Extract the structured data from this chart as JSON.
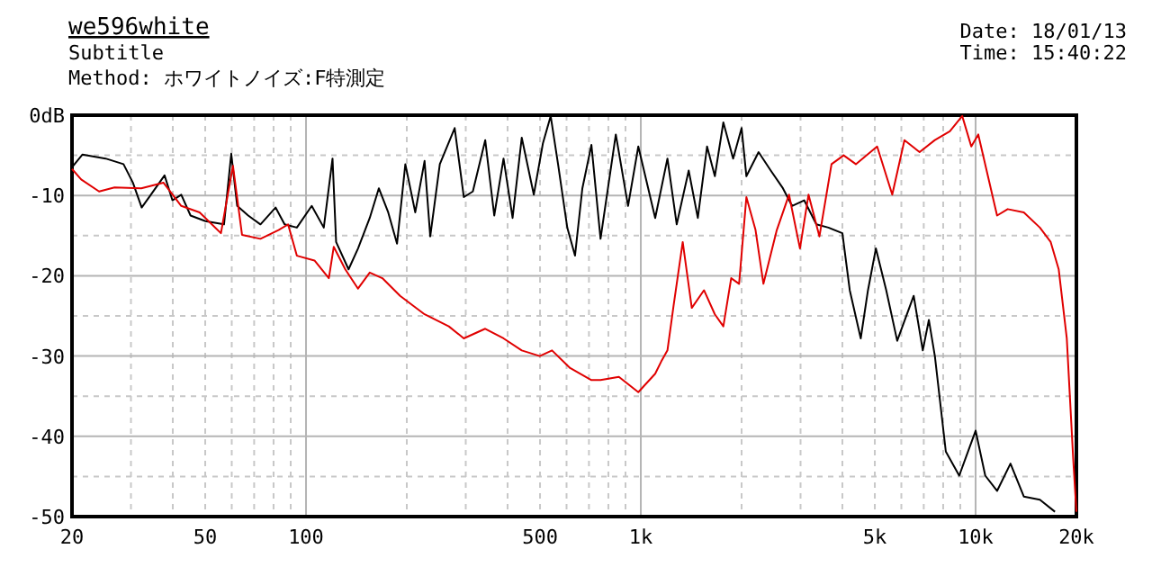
{
  "chart_data": {
    "type": "line",
    "title": "we596white",
    "subtitle": "Subtitle",
    "annotations": [
      "Method:  ホワイトノイズ:F特測定",
      "Date: 18/01/13",
      "Time: 15:40:22"
    ],
    "log": "x",
    "grid": true,
    "xlim": [
      20,
      20000
    ],
    "xticks": [
      20,
      50,
      100,
      500,
      {
        "value": 1000,
        "label": "1k"
      },
      {
        "value": 5000,
        "label": "5k"
      },
      {
        "value": 10000,
        "label": "10k"
      },
      {
        "value": 20000,
        "label": "20k"
      }
    ],
    "ylim": [
      -50,
      0
    ],
    "yticks": [
      {
        "value": 0,
        "label": "0dB"
      },
      -10,
      -20,
      -30,
      -40,
      -50
    ],
    "series": [
      {
        "color": "#000000",
        "x": [
          20,
          21.5,
          25.2,
          28.5,
          30.4,
          32.3,
          34.4,
          37.8,
          39.9,
          42.4,
          45.2,
          50.1,
          56.9,
          59.8,
          62.3,
          67.2,
          73.1,
          81.1,
          86.3,
          93.9,
          104,
          113,
          120,
          123,
          134,
          143,
          155,
          165,
          176,
          187,
          198,
          212,
          226,
          235,
          251,
          278,
          296,
          315,
          343,
          365,
          389,
          414,
          441,
          479,
          510,
          538,
          566,
          603,
          636,
          669,
          712,
          758,
          842,
          916,
          983,
          1104,
          1201,
          1280,
          1390,
          1480,
          1577,
          1664,
          1764,
          1887,
          2000,
          2067,
          2248,
          2444,
          2657,
          2830,
          3076,
          3344,
          3634,
          4000,
          4208,
          4538,
          4770,
          5036,
          5408,
          5832,
          6532,
          6954,
          7250,
          7556,
          8148,
          8934,
          10000,
          10686,
          11590,
          12710,
          13930,
          15560,
          17260
        ],
        "values": [
          -6.5,
          -4.9,
          -5.4,
          -6.1,
          -8.4,
          -11.5,
          -9.9,
          -7.5,
          -10.6,
          -9.9,
          -12.5,
          -13.2,
          -13.6,
          -4.8,
          -11.3,
          -12.5,
          -13.6,
          -11.5,
          -13.6,
          -14.0,
          -11.3,
          -14.0,
          -5.4,
          -15.8,
          -19.2,
          -16.6,
          -12.8,
          -9.1,
          -12.1,
          -16.0,
          -6.1,
          -12.1,
          -5.7,
          -15.1,
          -6.1,
          -1.6,
          -10.2,
          -9.5,
          -3.1,
          -12.5,
          -5.4,
          -12.8,
          -2.8,
          -9.9,
          -3.5,
          -0.1,
          -6.1,
          -14.0,
          -17.5,
          -9.1,
          -3.7,
          -15.4,
          -2.4,
          -11.3,
          -3.9,
          -12.8,
          -5.4,
          -13.6,
          -6.9,
          -12.8,
          -3.9,
          -7.6,
          -0.9,
          -5.4,
          -1.6,
          -7.6,
          -4.6,
          -6.9,
          -9.1,
          -11.3,
          -10.6,
          -13.6,
          -14.0,
          -14.7,
          -21.8,
          -27.8,
          -21.8,
          -16.6,
          -21.8,
          -28.1,
          -22.5,
          -29.3,
          -25.5,
          -30.0,
          -41.9,
          -44.9,
          -39.3,
          -44.9,
          -46.8,
          -43.4,
          -47.5,
          -47.9,
          -49.4
        ]
      },
      {
        "color": "#e00000",
        "x": [
          20,
          21.3,
          24.1,
          26.8,
          32.2,
          37.5,
          42.4,
          48.1,
          55.7,
          60.5,
          64.4,
          73.1,
          82.8,
          88.4,
          93.9,
          106,
          117,
          121,
          131,
          143,
          155,
          169,
          191,
          226,
          267,
          296,
          343,
          389,
          441,
          499,
          543,
          615,
          712,
          758,
          860,
          983,
          1104,
          1150,
          1201,
          1253,
          1334,
          1420,
          1544,
          1664,
          1764,
          1862,
          1966,
          2067,
          2201,
          2324,
          2548,
          2771,
          2988,
          3169,
          3416,
          3712,
          4036,
          4388,
          5080,
          5636,
          6130,
          6802,
          7556,
          8376,
          9120,
          9706,
          10185,
          11590,
          12470,
          13930,
          15560,
          16760,
          17710,
          18720,
          19560,
          20000
        ],
        "values": [
          -6.7,
          -8.0,
          -9.5,
          -9.0,
          -9.1,
          -8.4,
          -11.3,
          -12.1,
          -14.7,
          -6.3,
          -14.9,
          -15.4,
          -14.3,
          -13.6,
          -17.5,
          -18.1,
          -20.3,
          -16.4,
          -19.2,
          -21.6,
          -19.6,
          -20.3,
          -22.5,
          -24.8,
          -26.3,
          -27.8,
          -26.6,
          -27.8,
          -29.3,
          -30.0,
          -29.3,
          -31.5,
          -33.0,
          -33.0,
          -32.6,
          -34.5,
          -32.2,
          -30.7,
          -29.3,
          -23.7,
          -15.8,
          -24.0,
          -21.8,
          -24.8,
          -26.3,
          -20.3,
          -21.0,
          -10.2,
          -14.3,
          -21.0,
          -14.3,
          -9.9,
          -16.6,
          -9.9,
          -15.1,
          -6.1,
          -5.0,
          -6.1,
          -3.9,
          -9.9,
          -3.1,
          -4.6,
          -3.1,
          -2.0,
          -0.1,
          -3.9,
          -2.4,
          -12.5,
          -11.7,
          -12.1,
          -14.0,
          -15.8,
          -19.2,
          -27.8,
          -42.7,
          -49.4
        ]
      }
    ]
  }
}
